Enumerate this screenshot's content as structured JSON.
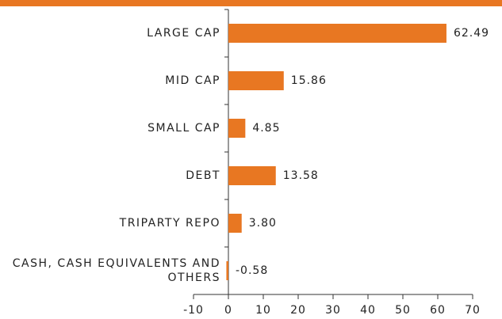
{
  "chart_data": {
    "type": "bar",
    "orientation": "horizontal",
    "categories": [
      "LARGE CAP",
      "MID CAP",
      "SMALL CAP",
      "DEBT",
      "TRIPARTY REPO",
      "CASH, CASH EQUIVALENTS AND OTHERS"
    ],
    "values": [
      62.49,
      15.86,
      4.85,
      13.58,
      3.8,
      -0.58
    ],
    "value_labels": [
      "62.49",
      "15.86",
      "4.85",
      "13.58",
      "3.80",
      "-0.58"
    ],
    "color": "#e87722",
    "xlim": [
      -10,
      70
    ],
    "xticks": [
      -10,
      0,
      10,
      20,
      30,
      40,
      50,
      60,
      70
    ],
    "grid": false
  }
}
